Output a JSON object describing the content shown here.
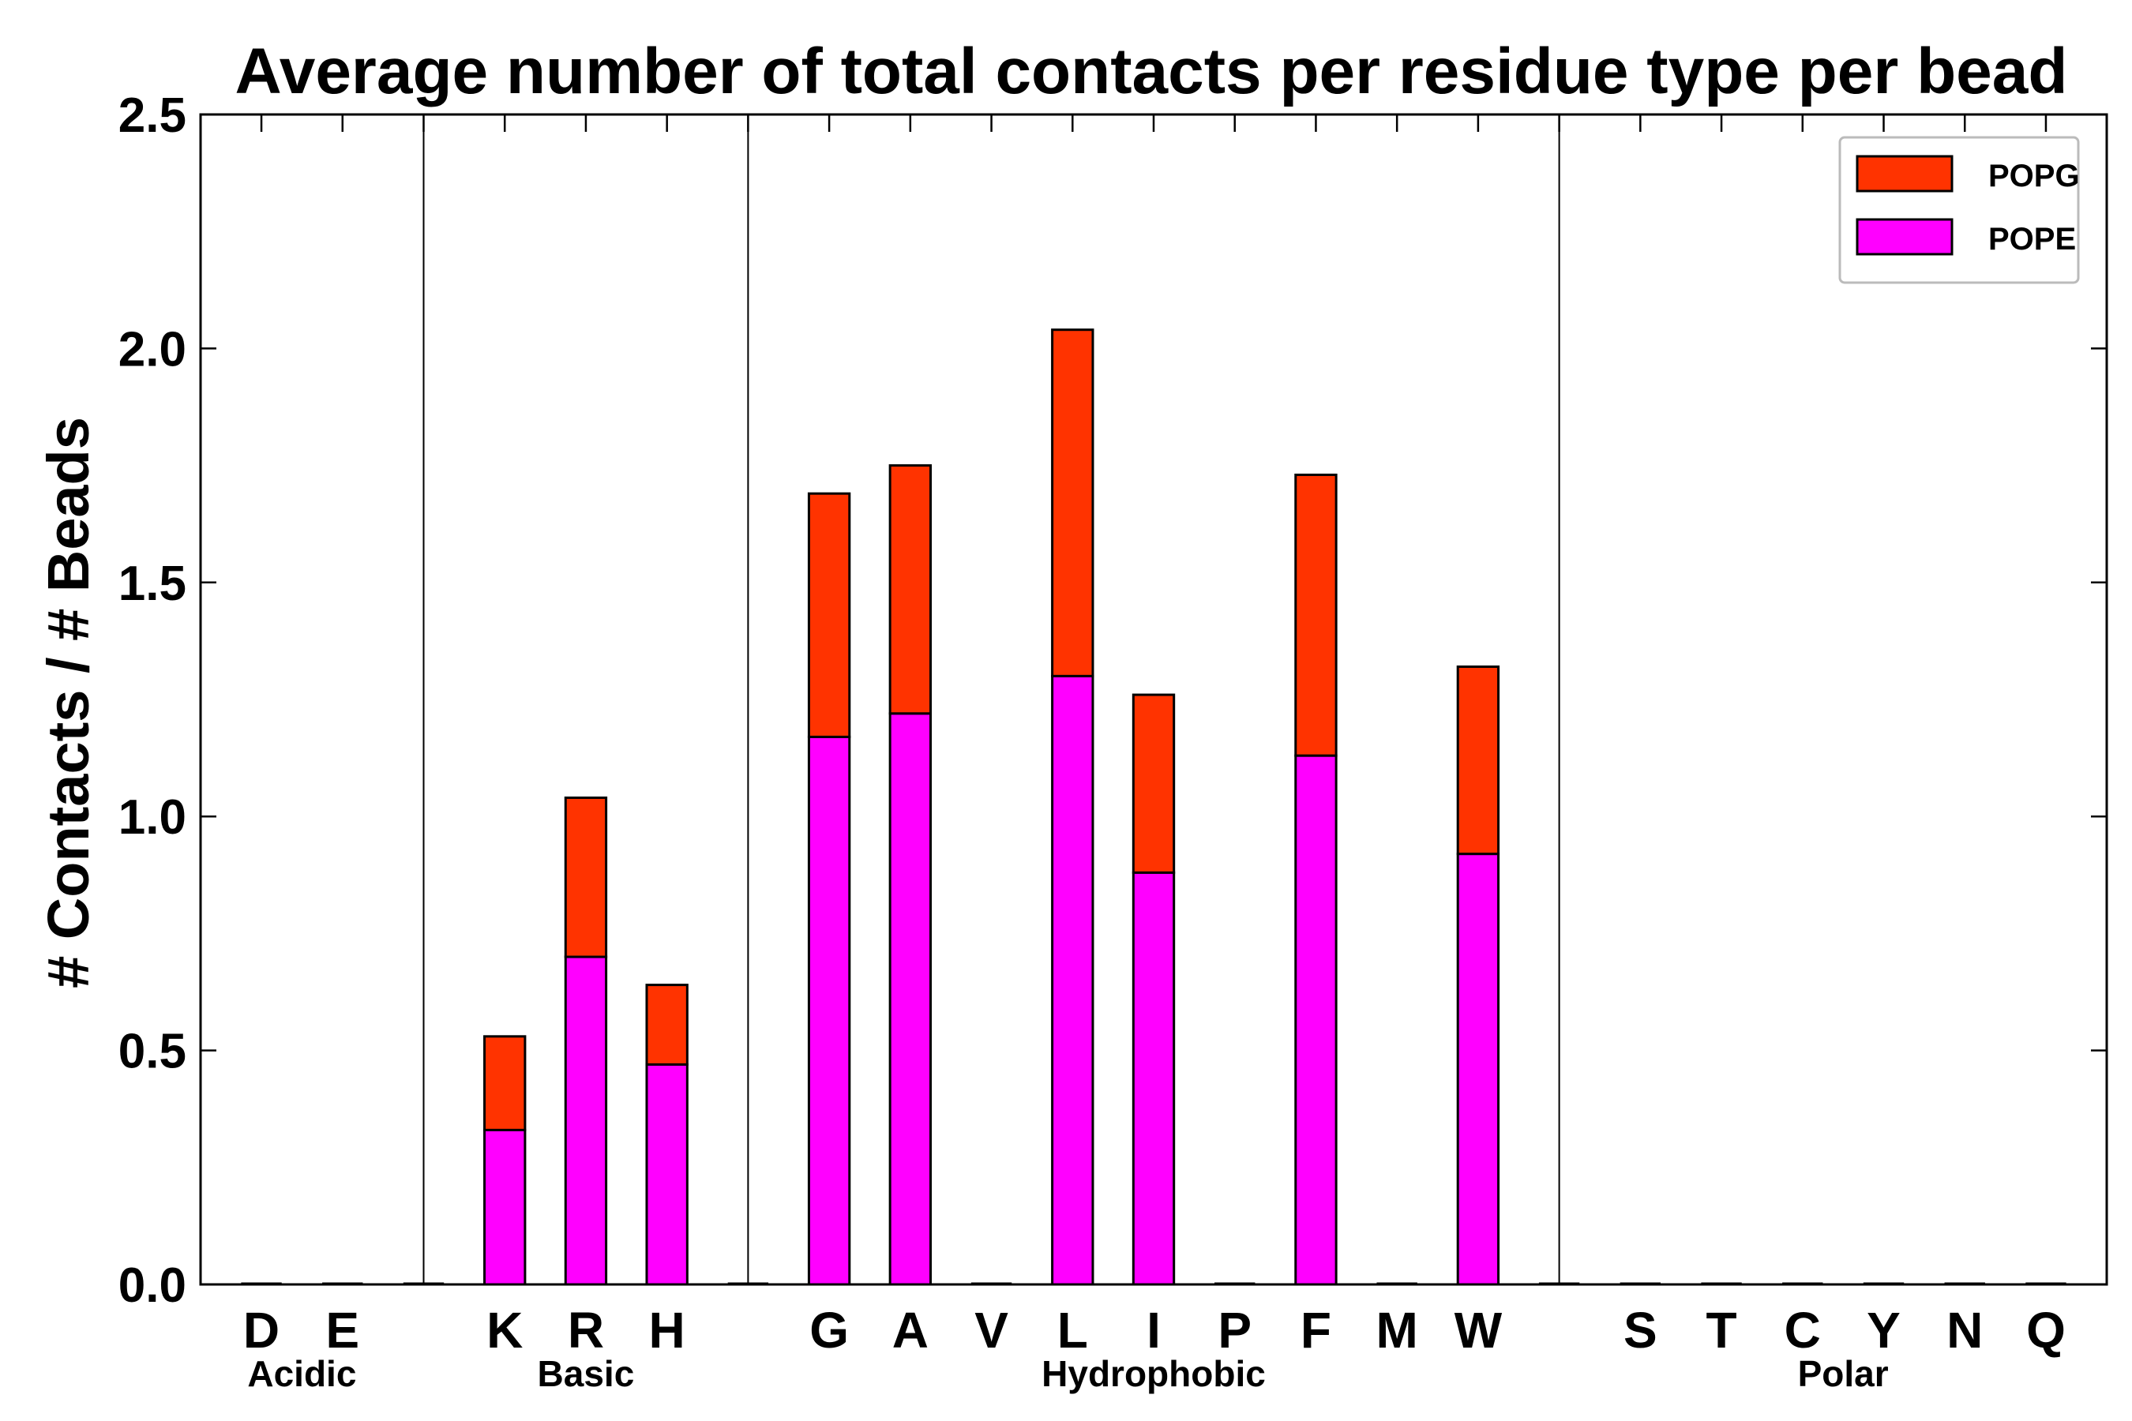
{
  "chart_data": {
    "type": "bar",
    "stacked": true,
    "title": "Average number of total contacts per residue type per bead",
    "xlabel": "",
    "ylabel": "# Contacts / # Beads",
    "ylim": [
      0,
      2.5
    ],
    "yticks": [
      "0.0",
      "0.5",
      "1.0",
      "1.5",
      "2.0",
      "2.5"
    ],
    "categories": [
      "D",
      "E",
      "",
      "K",
      "R",
      "H",
      "",
      "G",
      "A",
      "V",
      "L",
      "I",
      "P",
      "F",
      "M",
      "W",
      "",
      "S",
      "T",
      "C",
      "Y",
      "N",
      "Q"
    ],
    "series": [
      {
        "name": "POPE",
        "color": "#ff00ff",
        "values": [
          0,
          0,
          0,
          0.33,
          0.7,
          0.47,
          0,
          1.17,
          1.22,
          0,
          1.3,
          0.88,
          0,
          1.13,
          0,
          0.92,
          0,
          0,
          0,
          0,
          0,
          0,
          0
        ]
      },
      {
        "name": "POPG",
        "color": "#ff3300",
        "values": [
          0,
          0,
          0,
          0.2,
          0.34,
          0.17,
          0,
          0.52,
          0.53,
          0,
          0.74,
          0.38,
          0,
          0.6,
          0,
          0.4,
          0,
          0,
          0,
          0,
          0,
          0,
          0
        ]
      }
    ],
    "groups": [
      {
        "label": "Acidic",
        "start": 0,
        "end": 1
      },
      {
        "label": "Basic",
        "start": 3,
        "end": 5
      },
      {
        "label": "Hydrophobic",
        "start": 7,
        "end": 15
      },
      {
        "label": "Polar",
        "start": 17,
        "end": 22
      }
    ],
    "separators_after": [
      2,
      6,
      16
    ],
    "legend": {
      "position": "top-right",
      "entries": [
        "POPG",
        "POPE"
      ]
    }
  }
}
